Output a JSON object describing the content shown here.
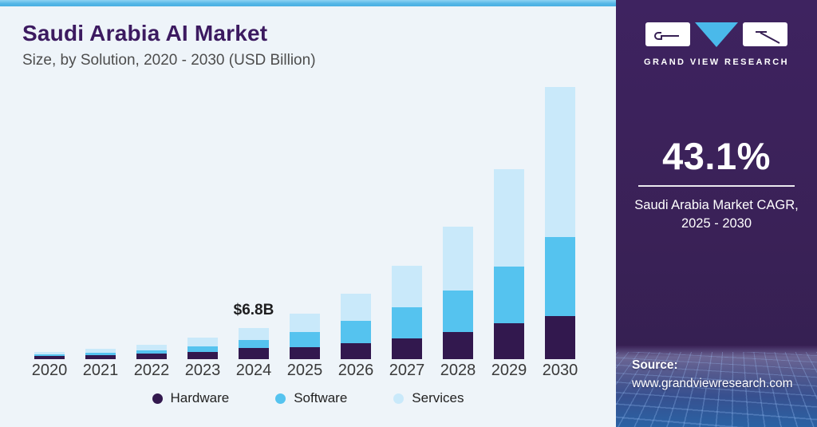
{
  "header": {
    "title": "Saudi Arabia AI Market",
    "subtitle": "Size, by Solution, 2020 - 2030 (USD Billion)"
  },
  "chart_data": {
    "type": "bar",
    "stacked": true,
    "title": "Saudi Arabia AI Market Size, by Solution, 2020 - 2030 (USD Billion)",
    "unit": "USD Billion",
    "categories": [
      "2020",
      "2021",
      "2022",
      "2023",
      "2024",
      "2025",
      "2026",
      "2027",
      "2028",
      "2029",
      "2030"
    ],
    "series": [
      {
        "name": "Hardware",
        "color": "#32184e",
        "values": [
          0.7,
          0.9,
          1.2,
          1.6,
          2.4,
          2.7,
          3.5,
          4.6,
          6.0,
          7.9,
          9.5
        ]
      },
      {
        "name": "Software",
        "color": "#55c3ef",
        "values": [
          0.4,
          0.5,
          0.8,
          1.2,
          1.7,
          3.3,
          4.8,
          6.7,
          9.0,
          12.4,
          17.2
        ]
      },
      {
        "name": "Services",
        "color": "#c9e9fa",
        "values": [
          0.4,
          0.8,
          1.2,
          1.9,
          2.7,
          3.9,
          5.9,
          9.0,
          14.0,
          21.2,
          32.7
        ]
      }
    ],
    "annotation": {
      "category": "2024",
      "label": "$6.8B"
    },
    "ylim": [
      0,
      60
    ],
    "grid": false,
    "legend_position": "bottom",
    "xlabel": "",
    "ylabel": ""
  },
  "sidebar": {
    "brand": "GRAND VIEW RESEARCH",
    "stat": {
      "value": "43.1%",
      "caption_line1": "Saudi Arabia Market CAGR,",
      "caption_line2": "2025 - 2030"
    },
    "source": {
      "label": "Source:",
      "url": "www.grandviewresearch.com"
    }
  },
  "colors": {
    "top_strip": "#55b7e7",
    "panel_bg": "#eef4f9",
    "title": "#3c1a60",
    "subtitle": "#4d4d4d",
    "axis_label": "#3a3a3a",
    "sidebar_bg": "#3a2157",
    "logo_triangle": "#4ab9ea"
  }
}
